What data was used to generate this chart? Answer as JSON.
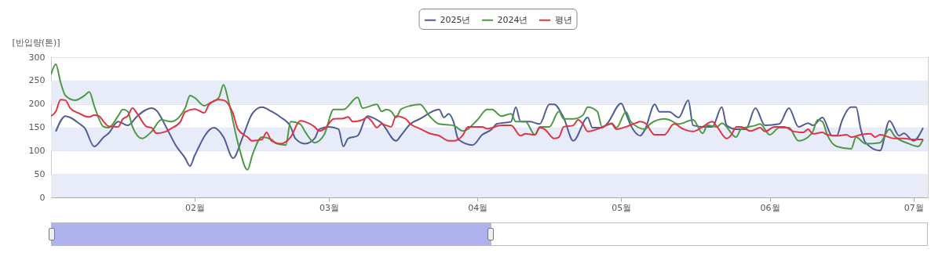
{
  "chart_data": {
    "type": "line",
    "ylabel": "[반입량(톤)]",
    "xlim": [
      "2025-01-02",
      "2025-07-04"
    ],
    "xticks": [
      {
        "value": "2025-02-01",
        "label": "02월"
      },
      {
        "value": "2025-03-01",
        "label": "03월"
      },
      {
        "value": "2025-04-01",
        "label": "04월"
      },
      {
        "value": "2025-05-01",
        "label": "05월"
      },
      {
        "value": "2025-06-01",
        "label": "06월"
      },
      {
        "value": "2025-07-01",
        "label": "07월"
      }
    ],
    "ylim": [
      0,
      300
    ],
    "yticks": [
      0,
      50,
      100,
      150,
      200,
      250,
      300
    ],
    "grid": "y",
    "legend": "top",
    "marker": "none",
    "line_style": "solid",
    "series": [
      {
        "name": "2025년",
        "color": "#4e5d96",
        "x": [
          "2025-01-03",
          "2025-01-05",
          "2025-01-06",
          "2025-01-08",
          "2025-01-09",
          "2025-01-11",
          "2025-01-13",
          "2025-01-14",
          "2025-01-16",
          "2025-01-18",
          "2025-01-20",
          "2025-01-23",
          "2025-01-24",
          "2025-01-26",
          "2025-01-28",
          "2025-01-30",
          "2025-01-31",
          "2025-02-01",
          "2025-02-05",
          "2025-02-07",
          "2025-02-09",
          "2025-02-11",
          "2025-02-13",
          "2025-02-15",
          "2025-02-17",
          "2025-02-19",
          "2025-02-21",
          "2025-02-22",
          "2025-02-24",
          "2025-02-26",
          "2025-02-27",
          "2025-03-01",
          "2025-03-03",
          "2025-03-04",
          "2025-03-05",
          "2025-03-07",
          "2025-03-09",
          "2025-03-11",
          "2025-03-12",
          "2025-03-15",
          "2025-03-16",
          "2025-03-18",
          "2025-03-20",
          "2025-03-24",
          "2025-03-25",
          "2025-03-26",
          "2025-03-27",
          "2025-03-28",
          "2025-03-31",
          "2025-04-02",
          "2025-04-04",
          "2025-04-05",
          "2025-04-08",
          "2025-04-09",
          "2025-04-10",
          "2025-04-12",
          "2025-04-14",
          "2025-04-16",
          "2025-04-17",
          "2025-04-19",
          "2025-04-21",
          "2025-04-24",
          "2025-04-25",
          "2025-04-27",
          "2025-04-28",
          "2025-05-01",
          "2025-05-02",
          "2025-05-03",
          "2025-05-05",
          "2025-05-06",
          "2025-05-08",
          "2025-05-09",
          "2025-05-11",
          "2025-05-13",
          "2025-05-15",
          "2025-05-16",
          "2025-05-18",
          "2025-05-20",
          "2025-05-22",
          "2025-05-23",
          "2025-05-25",
          "2025-05-27",
          "2025-05-29",
          "2025-05-31",
          "2025-06-03",
          "2025-06-05",
          "2025-06-07",
          "2025-06-09",
          "2025-06-10",
          "2025-06-12",
          "2025-06-14",
          "2025-06-15",
          "2025-06-16",
          "2025-06-18",
          "2025-06-19",
          "2025-06-20",
          "2025-06-21",
          "2025-06-24",
          "2025-06-26",
          "2025-06-28",
          "2025-06-29",
          "2025-07-01",
          "2025-07-03"
        ],
        "values": [
          141,
          174,
          171,
          157,
          149,
          109,
          129,
          137,
          162,
          154,
          174,
          191,
          186,
          151,
          112,
          84,
          67,
          90,
          149,
          129,
          84,
          129,
          179,
          193,
          184,
          171,
          151,
          126,
          115,
          126,
          146,
          151,
          146,
          109,
          126,
          132,
          174,
          166,
          159,
          121,
          132,
          157,
          168,
          188,
          171,
          179,
          162,
          124,
          112,
          134,
          146,
          157,
          162,
          193,
          162,
          162,
          157,
          199,
          199,
          170,
          121,
          171,
          149,
          149,
          157,
          201,
          179,
          154,
          132,
          146,
          199,
          183,
          183,
          171,
          208,
          154,
          151,
          151,
          193,
          154,
          146,
          146,
          191,
          154,
          157,
          191,
          151,
          159,
          154,
          171,
          132,
          132,
          162,
          193,
          193,
          146,
          117,
          100,
          164,
          132,
          137,
          121,
          149
        ]
      },
      {
        "name": "2024년",
        "color": "#4b9a43",
        "x": [
          "2025-01-02",
          "2025-01-03",
          "2025-01-04",
          "2025-01-05",
          "2025-01-07",
          "2025-01-09",
          "2025-01-10",
          "2025-01-11",
          "2025-01-13",
          "2025-01-14",
          "2025-01-16",
          "2025-01-17",
          "2025-01-18",
          "2025-01-19",
          "2025-01-21",
          "2025-01-23",
          "2025-01-25",
          "2025-01-27",
          "2025-01-30",
          "2025-01-31",
          "2025-02-01",
          "2025-02-03",
          "2025-02-04",
          "2025-02-06",
          "2025-02-07",
          "2025-02-08",
          "2025-02-10",
          "2025-02-12",
          "2025-02-13",
          "2025-02-15",
          "2025-02-17",
          "2025-02-18",
          "2025-02-20",
          "2025-02-21",
          "2025-02-23",
          "2025-02-24",
          "2025-02-26",
          "2025-02-28",
          "2025-03-02",
          "2025-03-04",
          "2025-03-07",
          "2025-03-08",
          "2025-03-11",
          "2025-03-12",
          "2025-03-13",
          "2025-03-14",
          "2025-03-15",
          "2025-03-16",
          "2025-03-18",
          "2025-03-20",
          "2025-03-22",
          "2025-03-24",
          "2025-03-27",
          "2025-03-29",
          "2025-04-01",
          "2025-04-03",
          "2025-04-04",
          "2025-04-06",
          "2025-04-08",
          "2025-04-09",
          "2025-04-11",
          "2025-04-13",
          "2025-04-14",
          "2025-04-16",
          "2025-04-18",
          "2025-04-19",
          "2025-04-21",
          "2025-04-23",
          "2025-04-24",
          "2025-04-26",
          "2025-04-27",
          "2025-04-29",
          "2025-04-30",
          "2025-05-02",
          "2025-05-03",
          "2025-05-06",
          "2025-05-07",
          "2025-05-10",
          "2025-05-11",
          "2025-05-13",
          "2025-05-16",
          "2025-05-18",
          "2025-05-19",
          "2025-05-21",
          "2025-05-22",
          "2025-05-25",
          "2025-05-26",
          "2025-05-29",
          "2025-05-30",
          "2025-06-01",
          "2025-06-03",
          "2025-06-05",
          "2025-06-07",
          "2025-06-09",
          "2025-06-10",
          "2025-06-11",
          "2025-06-12",
          "2025-06-13",
          "2025-06-15",
          "2025-06-18",
          "2025-06-19",
          "2025-06-21",
          "2025-06-24",
          "2025-06-26",
          "2025-06-27",
          "2025-06-30",
          "2025-07-02",
          "2025-07-03"
        ],
        "values": [
          263,
          285,
          246,
          218,
          208,
          218,
          226,
          196,
          151,
          149,
          174,
          188,
          184,
          151,
          126,
          141,
          166,
          162,
          191,
          218,
          213,
          196,
          201,
          213,
          241,
          208,
          117,
          59,
          90,
          129,
          124,
          115,
          112,
          162,
          157,
          141,
          117,
          134,
          188,
          188,
          214,
          191,
          199,
          184,
          188,
          184,
          171,
          188,
          196,
          199,
          174,
          157,
          154,
          142,
          166,
          188,
          188,
          174,
          179,
          162,
          162,
          134,
          151,
          151,
          184,
          168,
          168,
          176,
          193,
          184,
          151,
          159,
          149,
          183,
          162,
          146,
          157,
          168,
          166,
          157,
          166,
          137,
          154,
          151,
          159,
          129,
          146,
          154,
          157,
          134,
          149,
          149,
          121,
          129,
          141,
          166,
          162,
          134,
          109,
          104,
          129,
          115,
          117,
          146,
          132,
          115,
          109,
          124
        ]
      },
      {
        "name": "평년",
        "color": "#e03344",
        "x": [
          "2025-01-02",
          "2025-01-03",
          "2025-01-04",
          "2025-01-05",
          "2025-01-06",
          "2025-01-08",
          "2025-01-09",
          "2025-01-10",
          "2025-01-11",
          "2025-01-12",
          "2025-01-13",
          "2025-01-14",
          "2025-01-16",
          "2025-01-17",
          "2025-01-18",
          "2025-01-19",
          "2025-01-20",
          "2025-01-22",
          "2025-01-23",
          "2025-01-24",
          "2025-01-26",
          "2025-01-27",
          "2025-01-29",
          "2025-01-30",
          "2025-02-01",
          "2025-02-03",
          "2025-02-04",
          "2025-02-06",
          "2025-02-07",
          "2025-02-09",
          "2025-02-10",
          "2025-02-12",
          "2025-02-13",
          "2025-02-15",
          "2025-02-16",
          "2025-02-17",
          "2025-02-19",
          "2025-02-21",
          "2025-02-23",
          "2025-02-24",
          "2025-02-26",
          "2025-02-27",
          "2025-02-28",
          "2025-03-02",
          "2025-03-04",
          "2025-03-05",
          "2025-03-06",
          "2025-03-08",
          "2025-03-09",
          "2025-03-10",
          "2025-03-11",
          "2025-03-12",
          "2025-03-13",
          "2025-03-14",
          "2025-03-15",
          "2025-03-17",
          "2025-03-18",
          "2025-03-20",
          "2025-03-22",
          "2025-03-24",
          "2025-03-26",
          "2025-03-27",
          "2025-03-29",
          "2025-03-30",
          "2025-04-02",
          "2025-04-03",
          "2025-04-06",
          "2025-04-08",
          "2025-04-10",
          "2025-04-11",
          "2025-04-13",
          "2025-04-14",
          "2025-04-15",
          "2025-04-17",
          "2025-04-18",
          "2025-04-19",
          "2025-04-21",
          "2025-04-22",
          "2025-04-23",
          "2025-04-24",
          "2025-04-26",
          "2025-04-29",
          "2025-04-30",
          "2025-05-02",
          "2025-05-04",
          "2025-05-05",
          "2025-05-06",
          "2025-05-08",
          "2025-05-10",
          "2025-05-12",
          "2025-05-14",
          "2025-05-16",
          "2025-05-18",
          "2025-05-20",
          "2025-05-21",
          "2025-05-23",
          "2025-05-24",
          "2025-05-25",
          "2025-05-26",
          "2025-05-28",
          "2025-05-30",
          "2025-05-31",
          "2025-06-02",
          "2025-06-04",
          "2025-06-06",
          "2025-06-08",
          "2025-06-09",
          "2025-06-10",
          "2025-06-12",
          "2025-06-13",
          "2025-06-15",
          "2025-06-17",
          "2025-06-18",
          "2025-06-20",
          "2025-06-22",
          "2025-06-23",
          "2025-06-24",
          "2025-06-27",
          "2025-06-29",
          "2025-07-01",
          "2025-07-03"
        ],
        "values": [
          174,
          184,
          209,
          208,
          191,
          179,
          174,
          172,
          176,
          174,
          162,
          152,
          151,
          168,
          174,
          191,
          179,
          151,
          149,
          137,
          141,
          147,
          162,
          183,
          189,
          181,
          199,
          209,
          208,
          179,
          146,
          129,
          121,
          124,
          139,
          121,
          115,
          129,
          164,
          162,
          151,
          142,
          146,
          168,
          169,
          172,
          162,
          166,
          171,
          162,
          149,
          157,
          154,
          151,
          174,
          168,
          157,
          147,
          137,
          132,
          121,
          121,
          134,
          151,
          151,
          147,
          154,
          154,
          132,
          136,
          134,
          149,
          146,
          126,
          129,
          151,
          154,
          166,
          157,
          141,
          146,
          157,
          146,
          151,
          159,
          162,
          159,
          134,
          134,
          157,
          146,
          141,
          151,
          162,
          151,
          126,
          134,
          151,
          151,
          142,
          149,
          141,
          151,
          151,
          141,
          139,
          146,
          136,
          139,
          134,
          132,
          134,
          129,
          134,
          136,
          129,
          134,
          126,
          126,
          124,
          124
        ]
      }
    ]
  }
}
